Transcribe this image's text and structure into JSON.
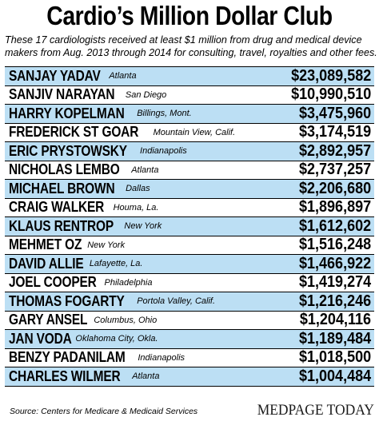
{
  "title": "Cardio’s Million Dollar Club",
  "subtitle": "These 17 cardiologists received at least $1 million from drug and medical device makers from Aug. 2013 through 2014 for consulting, travel, royalties and other fees.",
  "source": "Source:  Centers for Medicare & Medicaid Services",
  "logo": "MEDPAGE TODAY",
  "colors": {
    "band": "#bcdff4",
    "text": "#000000"
  },
  "chart_data": {
    "type": "table",
    "columns": [
      "Name",
      "Location",
      "Amount"
    ],
    "rows": [
      {
        "name": "SANJAY YADAV",
        "location": "Atlanta",
        "amount": "$23,089,582"
      },
      {
        "name": "SANJIV NARAYAN",
        "location": "San Diego",
        "amount": "$10,990,510"
      },
      {
        "name": "HARRY KOPELMAN",
        "location": "Billings, Mont.",
        "amount": "$3,475,960"
      },
      {
        "name": "FREDERICK ST GOAR",
        "location": "Mountain View, Calif.",
        "amount": "$3,174,519"
      },
      {
        "name": "ERIC PRYSTOWSKY",
        "location": "Indianapolis",
        "amount": "$2,892,957"
      },
      {
        "name": "NICHOLAS LEMBO",
        "location": "Atlanta",
        "amount": "$2,737,257"
      },
      {
        "name": "MICHAEL BROWN",
        "location": "Dallas",
        "amount": "$2,206,680"
      },
      {
        "name": "CRAIG WALKER",
        "location": "Houma, La.",
        "amount": "$1,896,897"
      },
      {
        "name": "KLAUS RENTROP",
        "location": "New York",
        "amount": "$1,612,602"
      },
      {
        "name": "MEHMET OZ",
        "location": "New York",
        "amount": "$1,516,248"
      },
      {
        "name": "DAVID ALLIE",
        "location": "Lafayette, La.",
        "amount": "$1,466,922"
      },
      {
        "name": "JOEL COOPER",
        "location": "Philadelphia",
        "amount": "$1,419,274"
      },
      {
        "name": "THOMAS FOGARTY",
        "location": "Portola Valley, Calif.",
        "amount": "$1,216,246"
      },
      {
        "name": "GARY ANSEL",
        "location": "Columbus, Ohio",
        "amount": "$1,204,116"
      },
      {
        "name": "JAN VODA",
        "location": "Oklahoma City, Okla.",
        "amount": "$1,189,484"
      },
      {
        "name": "BENZY PADANILAM",
        "location": "Indianapolis",
        "amount": "$1,018,500"
      },
      {
        "name": "CHARLES WILMER",
        "location": "Atlanta",
        "amount": "$1,004,484"
      }
    ]
  }
}
